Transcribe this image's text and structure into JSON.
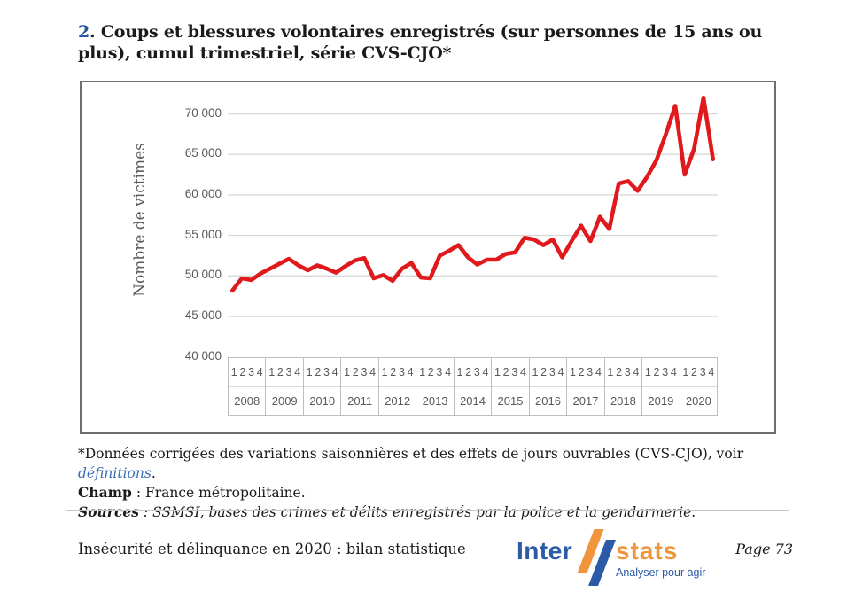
{
  "title": {
    "number": "2",
    "rest": ". Coups et blessures volontaires enregistrés (sur personnes de 15 ans ou plus), cumul trimestriel, série CVS-CJO*"
  },
  "chart_data": {
    "type": "line",
    "title": "Coups et blessures volontaires enregistrés, cumul trimestriel, série CVS-CJO",
    "ylabel": "Nombre de victimes",
    "xlabel": "",
    "ylim": [
      40000,
      72500
    ],
    "grid": "horizontal-gridlines",
    "legend": "none",
    "line_color": "#e0191c",
    "yticks": [
      {
        "label": "70 000",
        "value": 70000
      },
      {
        "label": "65 000",
        "value": 65000
      },
      {
        "label": "60 000",
        "value": 60000
      },
      {
        "label": "55 000",
        "value": 55000
      },
      {
        "label": "50 000",
        "value": 50000
      },
      {
        "label": "45 000",
        "value": 45000
      },
      {
        "label": "40 000",
        "value": 40000
      }
    ],
    "quarter_labels": [
      "1",
      "2",
      "3",
      "4"
    ],
    "years": [
      "2008",
      "2009",
      "2010",
      "2011",
      "2012",
      "2013",
      "2014",
      "2015",
      "2016",
      "2017",
      "2018",
      "2019",
      "2020"
    ],
    "series": [
      {
        "name": "Nombre de victimes (CVS-CJO)",
        "values": [
          48200,
          49700,
          49500,
          50300,
          50900,
          51500,
          52100,
          51300,
          50700,
          51300,
          50900,
          50400,
          51200,
          51900,
          52200,
          49700,
          50100,
          49400,
          50900,
          51600,
          49800,
          49700,
          52500,
          53100,
          53800,
          52300,
          51400,
          52000,
          52000,
          52700,
          52900,
          54700,
          54500,
          53800,
          54500,
          52300,
          54300,
          56200,
          54300,
          57300,
          55800,
          61400,
          61700,
          60500,
          62200,
          64300,
          67500,
          71000,
          62500,
          65700,
          72000,
          64400
        ]
      }
    ]
  },
  "notes": {
    "star": {
      "text": "*Données corrigées des variations saisonnières et des effets de jours ouvrables (CVS-CJO), voir ",
      "link": "définitions",
      "end": "."
    },
    "champ": {
      "label": "Champ",
      "text": " : France métropolitaine."
    },
    "sources": {
      "label": "Sources",
      "text": " : SSMSI, bases des crimes et délits enregistrés par la police et la gendarmerie."
    }
  },
  "footer": {
    "publication": "Insécurité et délinquance en 2020 : bilan statistique",
    "page": "Page 73",
    "logo": {
      "part1": "Inter",
      "part2": "stats",
      "tagline": "Analyser pour agir",
      "blue": "#2b5aa6",
      "orange": "#f0953c"
    }
  }
}
